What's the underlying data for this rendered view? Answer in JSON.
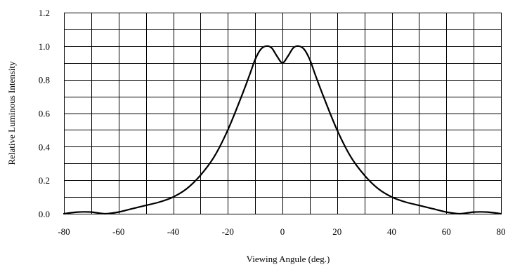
{
  "chart_data": {
    "type": "line",
    "title": "",
    "xlabel": "Viewing Angule (deg.)",
    "ylabel": "Relative Luminous Intensity",
    "xlim": [
      -80,
      80
    ],
    "ylim": [
      0,
      1.2
    ],
    "grid": true,
    "legend": "none",
    "line_color": "#000000",
    "x_ticks": [
      -80,
      -70,
      -60,
      -50,
      -40,
      -30,
      -20,
      -10,
      0,
      10,
      20,
      30,
      40,
      50,
      60,
      70,
      80
    ],
    "x_tick_labels": [
      "-80",
      "-60",
      "-40",
      "-20",
      "0",
      "20",
      "40",
      "60",
      "80"
    ],
    "x_tick_label_values": [
      -80,
      -60,
      -40,
      -20,
      0,
      20,
      40,
      60,
      80
    ],
    "y_ticks": [
      0,
      0.1,
      0.2,
      0.3,
      0.4,
      0.5,
      0.6,
      0.7,
      0.8,
      0.9,
      1.0,
      1.1,
      1.2
    ],
    "y_tick_labels": [
      "0.0",
      "0.2",
      "0.4",
      "0.6",
      "0.8",
      "1.0",
      "1.2"
    ],
    "y_tick_label_values": [
      0,
      0.2,
      0.4,
      0.6,
      0.8,
      1.0,
      1.2
    ],
    "series": [
      {
        "x": [
          -80,
          -75,
          -70,
          -65,
          -60,
          -55,
          -50,
          -45,
          -40,
          -35,
          -30,
          -25,
          -20,
          -15,
          -12,
          -10,
          -8,
          -6,
          -4,
          -2,
          0,
          2,
          4,
          6,
          8,
          10,
          12,
          15,
          20,
          25,
          30,
          35,
          40,
          45,
          50,
          55,
          60,
          65,
          70,
          75,
          80
        ],
        "y": [
          0.0,
          0.01,
          0.01,
          0.0,
          0.01,
          0.03,
          0.05,
          0.07,
          0.1,
          0.15,
          0.23,
          0.34,
          0.5,
          0.7,
          0.83,
          0.92,
          0.98,
          1.0,
          0.99,
          0.94,
          0.9,
          0.94,
          0.99,
          1.0,
          0.98,
          0.92,
          0.83,
          0.7,
          0.5,
          0.34,
          0.23,
          0.15,
          0.1,
          0.07,
          0.05,
          0.03,
          0.01,
          0.0,
          0.01,
          0.01,
          0.0
        ]
      }
    ]
  }
}
